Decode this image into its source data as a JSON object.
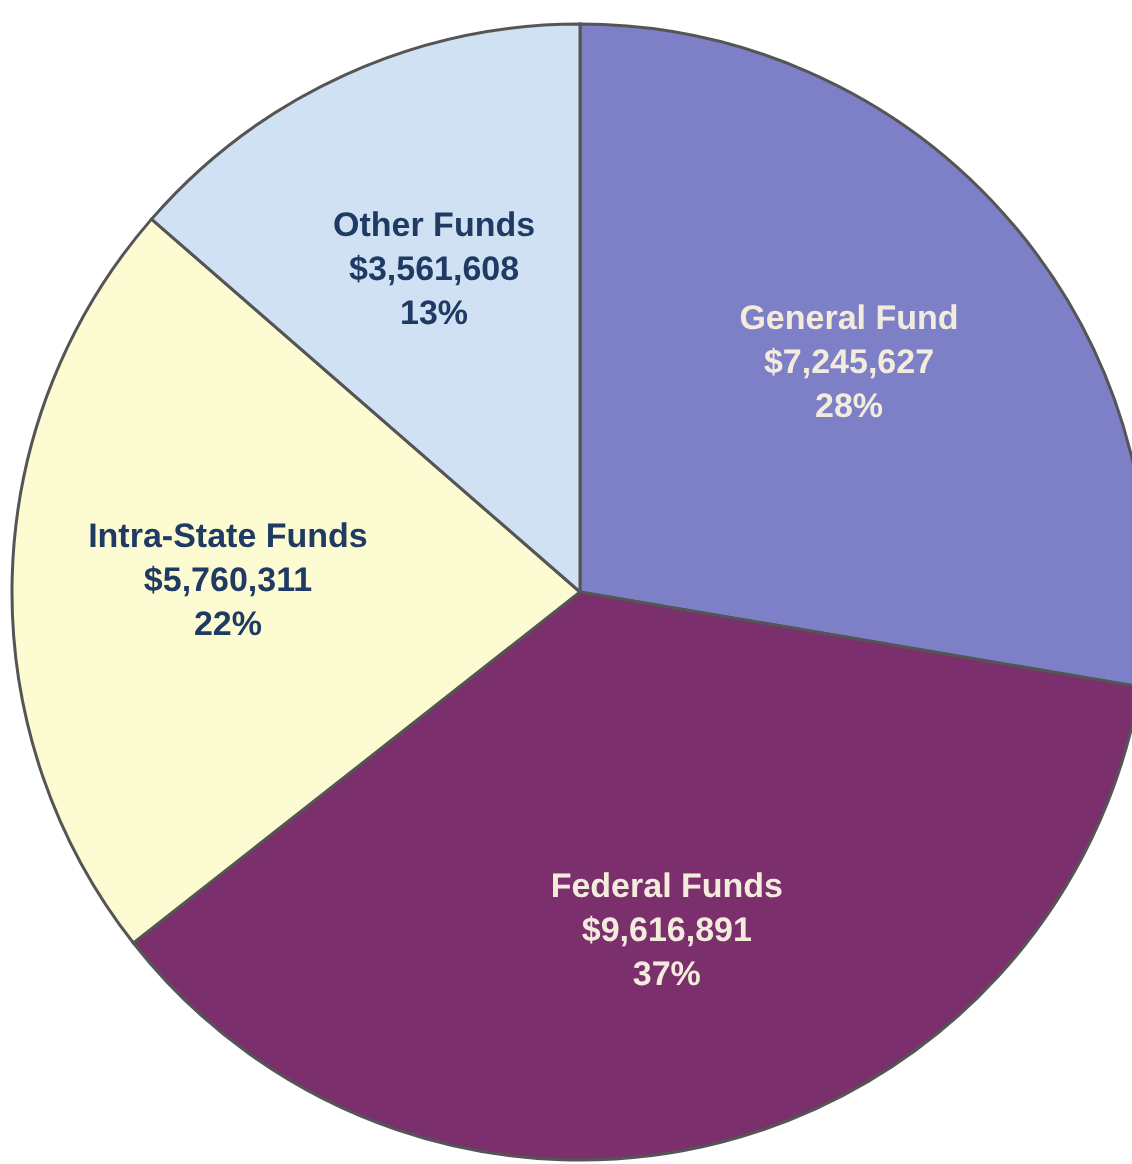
{
  "chart_data": {
    "type": "pie",
    "categories": [
      "General Fund",
      "Federal Funds",
      "Intra-State Funds",
      "Other Funds"
    ],
    "values": [
      7245627,
      9616891,
      5760311,
      3561608
    ],
    "colors": [
      "#7d80c6",
      "#7b2f6c",
      "#fdfbd2",
      "#d0e1f3"
    ],
    "value_labels": [
      "$7,245,627\n28%",
      "$9,616,891\n37%",
      "$5,760,311\n22%",
      "$3,561,608\n13%"
    ]
  }
}
